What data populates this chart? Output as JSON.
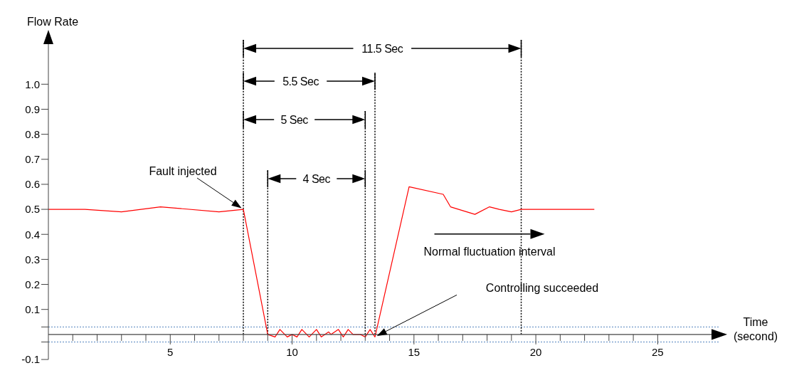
{
  "chart_data": {
    "type": "line",
    "xlabel": "Time (second)",
    "ylabel": "Flow Rate",
    "x": [
      0,
      1.5,
      3,
      4.6,
      7,
      8,
      9,
      9.3,
      9.5,
      9.8,
      10,
      10.2,
      10.4,
      10.7,
      11,
      11.2,
      11.5,
      11.6,
      11.9,
      12.1,
      12.3,
      12.5,
      12.8,
      13,
      13.2,
      13.4,
      14.8,
      16.2,
      16.5,
      17.5,
      18.1,
      18.5,
      19,
      19.4,
      22.4
    ],
    "series": [
      {
        "color": "#ff0000",
        "values": [
          0.5,
          0.5,
          0.49,
          0.51,
          0.49,
          0.5,
          0,
          -0.01,
          0.02,
          -0.01,
          0,
          -0.01,
          0.02,
          -0.01,
          0.02,
          -0.01,
          0.01,
          0,
          0.02,
          -0.01,
          0.02,
          0,
          0,
          -0.01,
          0.02,
          -0.01,
          0.59,
          0.56,
          0.51,
          0.48,
          0.51,
          0.5,
          0.49,
          0.5,
          0.5
        ]
      }
    ],
    "xlim": [
      0,
      27.5
    ],
    "xticks": [
      {
        "value": 1,
        "label": null
      },
      {
        "value": 2,
        "label": null
      },
      {
        "value": 3,
        "label": null
      },
      {
        "value": 4,
        "label": null
      },
      5,
      {
        "value": 6,
        "label": null
      },
      {
        "value": 7,
        "label": null
      },
      {
        "value": 8,
        "label": null
      },
      {
        "value": 9,
        "label": null
      },
      10,
      {
        "value": 11,
        "label": null
      },
      {
        "value": 12,
        "label": null
      },
      {
        "value": 13,
        "label": null
      },
      {
        "value": 14,
        "label": null
      },
      15,
      {
        "value": 16,
        "label": null
      },
      {
        "value": 17,
        "label": null
      },
      {
        "value": 18,
        "label": null
      },
      {
        "value": 19,
        "label": null
      },
      20,
      {
        "value": 21,
        "label": null
      },
      {
        "value": 22,
        "label": null
      },
      {
        "value": 23,
        "label": null
      },
      {
        "value": 24,
        "label": null
      },
      25
    ],
    "ylim": [
      -0.1,
      1.2
    ],
    "yticks": [
      -0.1,
      {
        "value": -0.03,
        "label": null
      },
      {
        "value": 0.03,
        "label": null
      },
      0.1,
      0.2,
      0.3,
      0.4,
      {
        "value": 0.5,
        "label": "0.5"
      },
      0.6,
      0.7,
      0.8,
      0.9,
      {
        "value": 1.0,
        "label": "1.0"
      }
    ],
    "ref_lines": [
      {
        "axis": "y",
        "value": 0.03,
        "color": "#4f81bd",
        "line_style": "dotted"
      },
      {
        "axis": "y",
        "value": -0.03,
        "color": "#4f81bd",
        "line_style": "dotted"
      },
      {
        "axis": "x",
        "value": 8,
        "color": "#000000",
        "line_style": "dotted"
      },
      {
        "axis": "x",
        "value": 9,
        "color": "#000000",
        "line_style": "dotted"
      },
      {
        "axis": "x",
        "value": 13,
        "color": "#000000",
        "line_style": "dotted"
      },
      {
        "axis": "x",
        "value": 13.4,
        "color": "#000000",
        "line_style": "dotted"
      },
      {
        "axis": "x",
        "value": 19.4,
        "color": "#000000",
        "line_style": "dotted"
      }
    ],
    "annotations": [
      "11.5 Sec",
      "5.5 Sec",
      "5 Sec",
      "4 Sec",
      "Fault injected",
      "Controlling succeeded",
      "Normal fluctuation interval"
    ],
    "line_style": "solid"
  }
}
